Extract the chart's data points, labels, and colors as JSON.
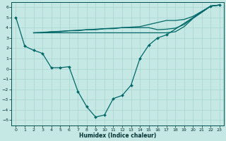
{
  "background_color": "#c5e8e5",
  "grid_color": "#a8d4d0",
  "line_color": "#006868",
  "xlabel": "Humidex (Indice chaleur)",
  "ylim": [
    -5.5,
    6.5
  ],
  "xlim": [
    -0.5,
    23.5
  ],
  "yticks": [
    -5,
    -4,
    -3,
    -2,
    -1,
    0,
    1,
    2,
    3,
    4,
    5,
    6
  ],
  "xticks": [
    0,
    1,
    2,
    3,
    4,
    5,
    6,
    7,
    8,
    9,
    10,
    11,
    12,
    13,
    14,
    15,
    16,
    17,
    18,
    19,
    20,
    21,
    22,
    23
  ],
  "line1_x": [
    0,
    1,
    2,
    3,
    4,
    5,
    6,
    7,
    8,
    9,
    10,
    11,
    12,
    13,
    14,
    15,
    16,
    17,
    22,
    23
  ],
  "line1_y": [
    5.0,
    2.2,
    1.8,
    1.5,
    0.1,
    0.1,
    0.2,
    -2.2,
    -3.7,
    -4.7,
    -4.5,
    -2.9,
    -2.6,
    -1.6,
    1.0,
    2.3,
    3.0,
    3.3,
    6.1,
    6.2
  ],
  "line2_x": [
    2,
    3,
    4,
    5,
    6,
    7,
    8,
    9,
    10,
    11,
    12,
    13,
    14,
    15,
    16,
    17,
    18,
    19,
    20,
    21,
    22,
    23
  ],
  "line2_y": [
    3.5,
    3.5,
    3.6,
    3.6,
    3.7,
    3.7,
    3.8,
    3.8,
    3.9,
    3.9,
    4.0,
    4.0,
    4.0,
    4.0,
    3.8,
    3.85,
    3.95,
    4.3,
    4.95,
    5.5,
    6.1,
    6.2
  ],
  "line3_x": [
    2,
    3,
    4,
    5,
    6,
    7,
    8,
    9,
    10,
    11,
    12,
    13,
    14,
    15,
    16,
    17,
    18,
    19,
    20,
    21,
    22,
    23
  ],
  "line3_y": [
    3.5,
    3.5,
    3.5,
    3.5,
    3.5,
    3.5,
    3.5,
    3.5,
    3.5,
    3.5,
    3.5,
    3.5,
    3.5,
    3.5,
    3.5,
    3.5,
    3.6,
    4.1,
    4.9,
    5.5,
    6.1,
    6.2
  ],
  "line4_x": [
    2,
    14,
    15,
    16,
    17,
    18,
    19,
    20,
    21,
    22,
    23
  ],
  "line4_y": [
    3.5,
    4.1,
    4.3,
    4.5,
    4.7,
    4.7,
    4.8,
    5.1,
    5.6,
    6.1,
    6.2
  ]
}
